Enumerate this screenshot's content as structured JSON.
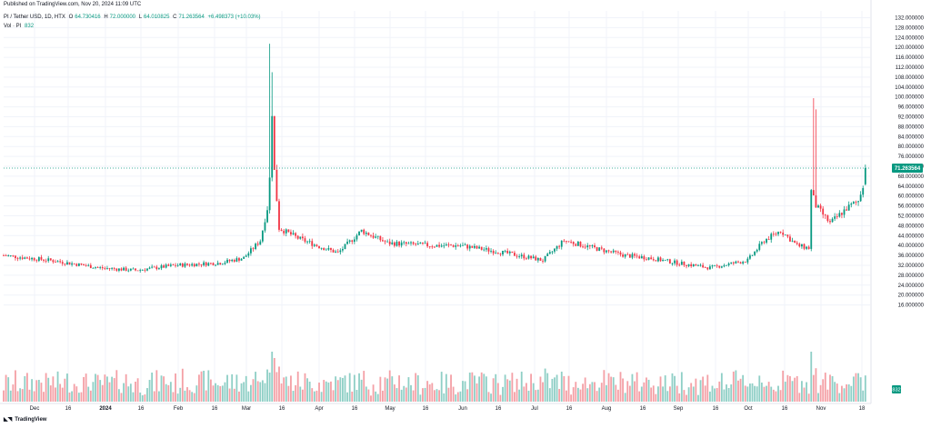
{
  "header": {
    "published": "Published on TradingView.com, Nov 20, 2024 11:09 UTC",
    "symbol": "PI / Tether USD, 1D, HTX",
    "open_label": "O",
    "open": "64.730416",
    "high_label": "H",
    "high": "72.000000",
    "low_label": "L",
    "low": "64.010825",
    "close_label": "C",
    "close": "71.263564",
    "change": "+6.498373 (+10.03%)",
    "volume_label": "Vol · PI",
    "volume": "832"
  },
  "footer": {
    "brand": "TradingView",
    "logo_icon": "tradingview-logo-icon"
  },
  "colors": {
    "up": "#089981",
    "down": "#f23645",
    "up_vol": "#8fcfc6",
    "down_vol": "#f4a0a6",
    "grid": "#f0f3fa"
  },
  "chart_data": {
    "type": "candlestick",
    "price_axis": {
      "ticks": [
        "132.000000",
        "128.000000",
        "124.000000",
        "120.000000",
        "116.000000",
        "112.000000",
        "108.000000",
        "104.000000",
        "100.000000",
        "96.000000",
        "92.000000",
        "88.000000",
        "84.000000",
        "80.000000",
        "76.000000",
        "72.000000",
        "68.000000",
        "64.000000",
        "60.000000",
        "56.000000",
        "52.000000",
        "48.000000",
        "44.000000",
        "40.000000",
        "36.000000",
        "32.000000",
        "28.000000",
        "24.000000",
        "20.000000",
        "16.000000"
      ],
      "range": [
        15,
        134
      ]
    },
    "time_axis": {
      "ticks": [
        "Dec",
        "16",
        "2024",
        "16",
        "Feb",
        "16",
        "Mar",
        "16",
        "Apr",
        "16",
        "May",
        "16",
        "Jun",
        "16",
        "Jul",
        "16",
        "Aug",
        "16",
        "Sep",
        "16",
        "Oct",
        "16",
        "Nov",
        "18"
      ],
      "range": [
        "2023-11-20",
        "2024-11-22"
      ]
    },
    "last_price": "71.263564",
    "last_volume": "832",
    "series": [
      {
        "date": "2023-11-20",
        "close": 36
      },
      {
        "date": "2023-12-10",
        "close": 34
      },
      {
        "date": "2023-12-31",
        "close": 31
      },
      {
        "date": "2024-01-15",
        "close": 30
      },
      {
        "date": "2024-02-01",
        "close": 32
      },
      {
        "date": "2024-02-20",
        "close": 33
      },
      {
        "date": "2024-03-01",
        "close": 35
      },
      {
        "date": "2024-03-08",
        "close": 42
      },
      {
        "date": "2024-03-11",
        "close": 55
      },
      {
        "date": "2024-03-12",
        "close": 67
      },
      {
        "date": "2024-03-13",
        "close": 94
      },
      {
        "date": "2024-03-14",
        "close": 70
      },
      {
        "date": "2024-03-16",
        "close": 47
      },
      {
        "date": "2024-03-24",
        "close": 43
      },
      {
        "date": "2024-04-01",
        "close": 40
      },
      {
        "date": "2024-04-10",
        "close": 37
      },
      {
        "date": "2024-04-20",
        "close": 46
      },
      {
        "date": "2024-05-01",
        "close": 41
      },
      {
        "date": "2024-05-20",
        "close": 40
      },
      {
        "date": "2024-06-01",
        "close": 40
      },
      {
        "date": "2024-06-20",
        "close": 37
      },
      {
        "date": "2024-07-01",
        "close": 35
      },
      {
        "date": "2024-07-06",
        "close": 34
      },
      {
        "date": "2024-07-15",
        "close": 42
      },
      {
        "date": "2024-08-01",
        "close": 38
      },
      {
        "date": "2024-08-10",
        "close": 36
      },
      {
        "date": "2024-08-20",
        "close": 35
      },
      {
        "date": "2024-09-01",
        "close": 33
      },
      {
        "date": "2024-09-15",
        "close": 31
      },
      {
        "date": "2024-10-01",
        "close": 34
      },
      {
        "date": "2024-10-08",
        "close": 42
      },
      {
        "date": "2024-10-15",
        "close": 46
      },
      {
        "date": "2024-10-22",
        "close": 40
      },
      {
        "date": "2024-10-27",
        "close": 39
      },
      {
        "date": "2024-10-28",
        "close": 62
      },
      {
        "date": "2024-10-30",
        "close": 56
      },
      {
        "date": "2024-11-05",
        "close": 49
      },
      {
        "date": "2024-11-12",
        "close": 55
      },
      {
        "date": "2024-11-17",
        "close": 58
      },
      {
        "date": "2024-11-19",
        "close": 64.7
      },
      {
        "date": "2024-11-20",
        "close": 71.26
      }
    ],
    "spike_highs": [
      {
        "date": "2024-03-12",
        "high": 121.5
      },
      {
        "date": "2024-03-13",
        "high": 110
      },
      {
        "date": "2024-10-29",
        "high": 99.5
      },
      {
        "date": "2024-10-30",
        "high": 95
      }
    ]
  }
}
